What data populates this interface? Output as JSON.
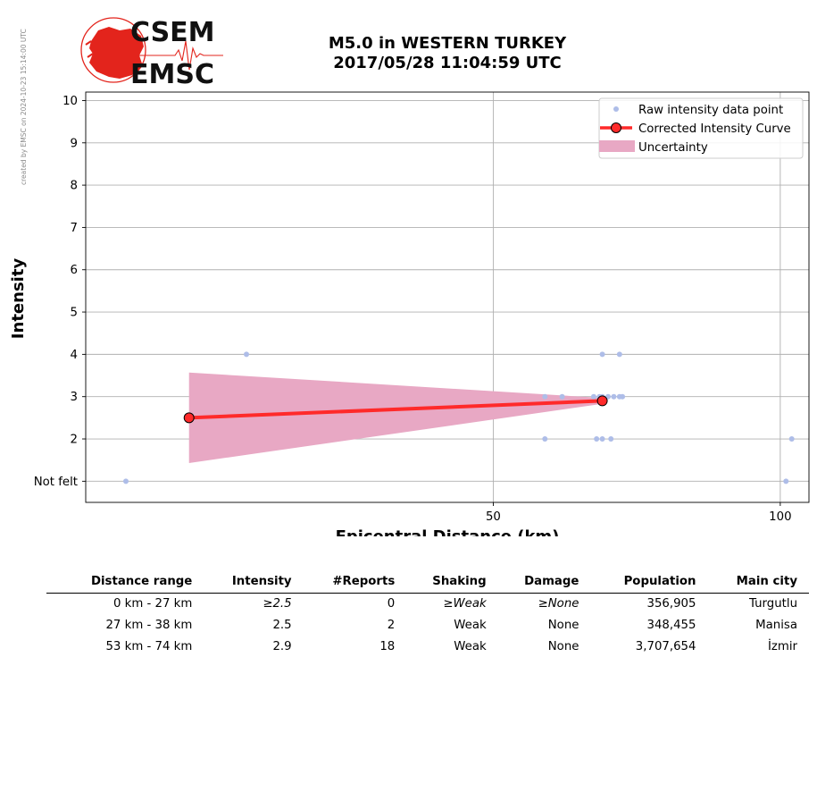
{
  "watermark": "created by EMSC on 2024-10-23 15:14:00 UTC",
  "logo": {
    "line1": "CSEM",
    "line2": "EMSC"
  },
  "title": {
    "line1": "M5.0 in WESTERN TURKEY",
    "line2": "2017/05/28 11:04:59 UTC"
  },
  "colors": {
    "raw_points": "#aebde8",
    "curve": "#ff2a2a",
    "curve_markers": "#ff2a2a",
    "uncertainty": "#e8a8c4",
    "logo_red": "#e3241c"
  },
  "chart_data": {
    "type": "scatter",
    "xlabel": "Epicentral Distance (km)",
    "ylabel": "Intensity",
    "xlim": [
      -21,
      105
    ],
    "ylim": [
      0.5,
      10.2
    ],
    "x_ticks": [
      50,
      100
    ],
    "y_tick_labels": [
      "Not felt",
      "2",
      "3",
      "4",
      "5",
      "6",
      "7",
      "8",
      "9",
      "10"
    ],
    "grid": true,
    "legend_position": "top-right",
    "legend": [
      "Raw intensity data point",
      "Corrected Intensity Curve",
      "Uncertainty"
    ],
    "series": [
      {
        "name": "Raw intensity data point",
        "points": [
          [
            -14,
            1
          ],
          [
            7,
            4
          ],
          [
            59,
            3
          ],
          [
            62,
            3
          ],
          [
            67.5,
            3
          ],
          [
            68.5,
            3
          ],
          [
            69,
            3
          ],
          [
            70,
            3
          ],
          [
            71,
            3
          ],
          [
            72,
            3
          ],
          [
            72.5,
            3
          ],
          [
            69,
            4
          ],
          [
            72,
            4
          ],
          [
            59,
            2
          ],
          [
            68,
            2
          ],
          [
            69,
            2
          ],
          [
            70.5,
            2
          ],
          [
            101,
            1
          ],
          [
            102,
            2
          ]
        ]
      },
      {
        "name": "Corrected Intensity Curve",
        "points": [
          [
            -3,
            2.5
          ],
          [
            69,
            2.9
          ]
        ]
      },
      {
        "name": "Uncertainty",
        "upper": [
          [
            -3,
            3.57
          ],
          [
            69,
            2.97
          ]
        ],
        "lower": [
          [
            -3,
            1.43
          ],
          [
            69,
            2.83
          ]
        ]
      }
    ]
  },
  "table": {
    "headers": [
      "Distance range",
      "Intensity",
      "#Reports",
      "Shaking",
      "Damage",
      "Population",
      "Main city"
    ],
    "rows": [
      {
        "range": "0 km -   27 km",
        "intensity": "≥2.5",
        "reports": "0",
        "shaking": "≥Weak",
        "damage": "≥None",
        "population": "356,905",
        "city": "Turgutlu"
      },
      {
        "range": "27 km -   38 km",
        "intensity": "2.5",
        "reports": "2",
        "shaking": "Weak",
        "damage": "None",
        "population": "348,455",
        "city": "Manisa"
      },
      {
        "range": "53 km -   74 km",
        "intensity": "2.9",
        "reports": "18",
        "shaking": "Weak",
        "damage": "None",
        "population": "3,707,654",
        "city": "İzmir"
      }
    ]
  }
}
